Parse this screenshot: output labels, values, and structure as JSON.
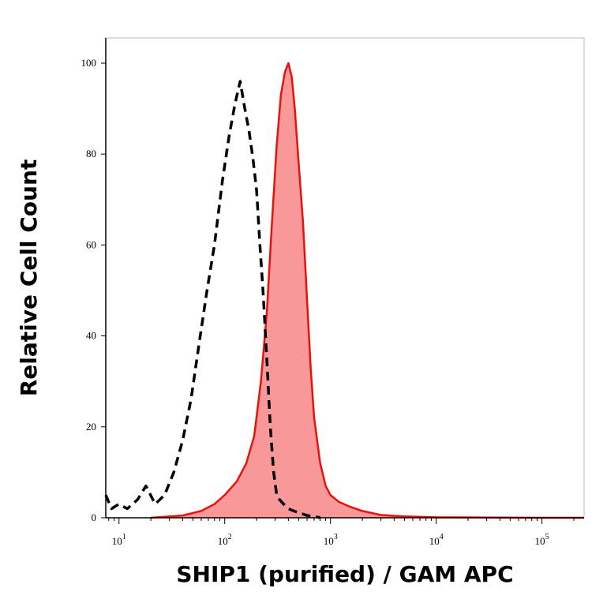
{
  "chart_data": {
    "type": "area",
    "xlabel": "SHIP1 (purified) / GAM APC",
    "ylabel": "Relative Cell Count",
    "x_scale": "log",
    "xlim": [
      7.5,
      250000
    ],
    "ylim": [
      0,
      100
    ],
    "y_ticks": [
      0,
      20,
      40,
      60,
      80,
      100
    ],
    "x_ticks": [
      {
        "base": "10",
        "exp": "1",
        "value": 10
      },
      {
        "base": "10",
        "exp": "2",
        "value": 100
      },
      {
        "base": "10",
        "exp": "3",
        "value": 1000
      },
      {
        "base": "10",
        "exp": "4",
        "value": 10000
      },
      {
        "base": "10",
        "exp": "5",
        "value": 100000
      }
    ],
    "grid": false,
    "series": [
      {
        "style": "dashed",
        "color": "#000000",
        "fill": "none",
        "x": [
          7.5,
          8.5,
          10,
          12,
          15,
          18,
          22,
          27,
          33,
          40,
          48,
          57,
          68,
          80,
          95,
          110,
          125,
          140,
          155,
          170,
          185,
          200,
          215,
          230,
          250,
          270,
          290,
          310,
          330,
          360,
          400,
          450,
          520,
          600,
          700,
          800
        ],
        "y": [
          5,
          2,
          3,
          2,
          4,
          7,
          3,
          5,
          10,
          17,
          26,
          38,
          50,
          60,
          74,
          84,
          91,
          96,
          90,
          85,
          79,
          72,
          60,
          50,
          35,
          20,
          10,
          5,
          4,
          3,
          2,
          1.5,
          1,
          0.5,
          0.3,
          0
        ]
      },
      {
        "style": "solid",
        "color": "#e8120c",
        "fill": "#f89898",
        "x": [
          20,
          40,
          60,
          80,
          100,
          130,
          160,
          190,
          220,
          250,
          280,
          310,
          340,
          370,
          400,
          430,
          460,
          500,
          550,
          600,
          650,
          700,
          800,
          900,
          1000,
          1200,
          1500,
          2000,
          3000,
          5000,
          10000,
          100000,
          250000
        ],
        "y": [
          0,
          0.5,
          1.5,
          3,
          5,
          8,
          12,
          18,
          30,
          45,
          65,
          82,
          93,
          98,
          100,
          97,
          90,
          78,
          65,
          48,
          33,
          22,
          12,
          7,
          5,
          3.5,
          2.5,
          1.5,
          0.6,
          0.3,
          0.1,
          0,
          0
        ]
      }
    ]
  }
}
